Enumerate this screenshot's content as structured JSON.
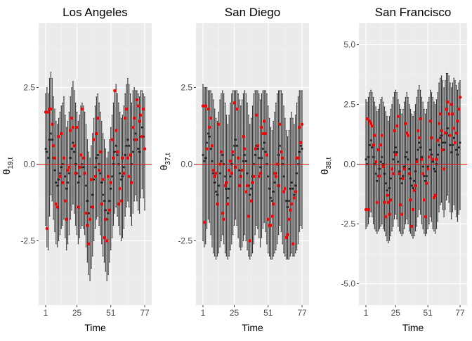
{
  "chart_data": [
    {
      "type": "errorbar",
      "title": "Los Angeles",
      "xlabel": "Time",
      "ylabel_base": "θ",
      "ylabel_sub": "19,t",
      "xlim": [
        1,
        77
      ],
      "ylim": [
        -4.6,
        4.6
      ],
      "x_ticks": [
        1,
        25,
        51,
        77
      ],
      "y_ticks": [
        -2.5,
        0.0,
        2.5
      ],
      "y_tick_labels": [
        "-2.5",
        "0.0",
        "2.5"
      ],
      "reference_line": 0,
      "x": [
        1,
        2,
        3,
        4,
        5,
        6,
        7,
        8,
        9,
        10,
        11,
        12,
        13,
        14,
        15,
        16,
        17,
        18,
        19,
        20,
        21,
        22,
        23,
        24,
        25,
        26,
        27,
        28,
        29,
        30,
        31,
        32,
        33,
        34,
        35,
        36,
        37,
        38,
        39,
        40,
        41,
        42,
        43,
        44,
        45,
        46,
        47,
        48,
        49,
        50,
        51,
        52,
        53,
        54,
        55,
        56,
        57,
        58,
        59,
        60,
        61,
        62,
        63,
        64,
        65,
        66,
        67,
        68,
        69,
        70,
        71,
        72,
        73,
        74,
        75,
        76,
        77
      ],
      "mean": [
        0.5,
        0.4,
        0.2,
        0.8,
        1.0,
        0.8,
        0.2,
        -0.2,
        -0.6,
        -0.7,
        -0.5,
        -0.3,
        -0.1,
        0.0,
        0.2,
        -0.4,
        -0.8,
        -0.6,
        -0.3,
        0.2,
        0.5,
        0.7,
        0.4,
        0.0,
        -0.3,
        -0.6,
        -0.4,
        -0.1,
        0.0,
        -0.1,
        -0.3,
        -0.7,
        -1.2,
        -1.6,
        -1.8,
        -1.4,
        -1.0,
        -0.5,
        -0.1,
        0.2,
        0.3,
        0.0,
        -0.3,
        -0.6,
        -1.0,
        -1.2,
        -1.5,
        -1.8,
        -1.6,
        -1.2,
        -0.8,
        -0.4,
        0.0,
        0.4,
        0.6,
        0.3,
        0.0,
        -0.3,
        -0.5,
        -0.4,
        -0.1,
        0.3,
        0.6,
        0.8,
        0.6,
        0.3,
        0.0,
        0.4,
        0.8,
        1.0,
        0.8,
        0.5,
        0.4,
        0.9,
        1.2,
        0.9,
        0.5
      ],
      "lower": [
        -2.0,
        -2.7,
        -2.8,
        -1.7,
        -1.0,
        -1.2,
        -1.8,
        -2.2,
        -2.6,
        -2.7,
        -2.5,
        -2.3,
        -2.1,
        -2.0,
        -1.8,
        -2.4,
        -2.8,
        -2.6,
        -2.3,
        -1.8,
        -1.5,
        -1.3,
        -1.6,
        -2.0,
        -2.3,
        -2.6,
        -2.4,
        -2.1,
        -2.0,
        -2.1,
        -2.3,
        -2.7,
        -3.2,
        -3.6,
        -3.8,
        -3.4,
        -3.0,
        -2.5,
        -2.1,
        -1.8,
        -1.7,
        -2.0,
        -2.3,
        -2.6,
        -3.0,
        -3.2,
        -3.5,
        -3.8,
        -3.6,
        -3.2,
        -2.8,
        -2.4,
        -2.0,
        -1.6,
        -1.4,
        -1.7,
        -2.0,
        -2.3,
        -2.5,
        -2.4,
        -2.1,
        -1.7,
        -1.4,
        -1.2,
        -1.4,
        -1.7,
        -2.0,
        -1.6,
        -1.2,
        -1.0,
        -1.2,
        -1.5,
        -1.6,
        -1.1,
        -0.8,
        -1.1,
        -1.5
      ],
      "upper": [
        2.3,
        2.5,
        2.3,
        2.8,
        3.0,
        2.8,
        2.2,
        1.8,
        1.4,
        1.3,
        1.5,
        1.7,
        1.9,
        2.0,
        2.2,
        1.6,
        1.2,
        1.4,
        1.7,
        2.2,
        2.5,
        2.7,
        2.4,
        2.0,
        1.7,
        1.4,
        1.6,
        1.9,
        2.0,
        1.9,
        1.7,
        1.3,
        0.8,
        0.4,
        0.2,
        0.6,
        1.0,
        1.5,
        1.9,
        2.2,
        2.3,
        2.0,
        1.7,
        1.4,
        1.0,
        0.8,
        0.5,
        0.2,
        0.4,
        0.8,
        1.2,
        1.6,
        2.0,
        2.4,
        2.6,
        2.3,
        2.0,
        1.7,
        1.5,
        1.6,
        1.9,
        2.3,
        2.6,
        2.8,
        2.6,
        2.3,
        2.0,
        2.4,
        2.5,
        2.4,
        2.4,
        2.3,
        2.2,
        2.4,
        2.4,
        2.3,
        2.2
      ],
      "observed": [
        1.7,
        -2.1,
        1.7,
        1.8,
        1.8,
        1.3,
        0.6,
        0.2,
        -1.3,
        -1.4,
        0.9,
        -0.4,
        1.0,
        -0.6,
        0.2,
        -1.2,
        -1.8,
        -0.2,
        -0.1,
        1.1,
        1.5,
        1.2,
        0.6,
        -0.3,
        1.2,
        -1.4,
        -0.1,
        0.3,
        1.8,
        0.2,
        -0.3,
        -1.6,
        -2.0,
        -2.6,
        -1.8,
        -0.5,
        -1.4,
        0.8,
        -0.4,
        1.0,
        1.5,
        -0.2,
        0.4,
        -1.3,
        -0.5,
        -2.4,
        -1.8,
        -2.5,
        -0.4,
        -1.5,
        -0.6,
        0.8,
        0.2,
        2.4,
        1.1,
        0.4,
        -1.3,
        -0.8,
        -1.2,
        0.2,
        -0.3,
        1.5,
        1.8,
        0.2,
        -0.4,
        0.3,
        -0.6,
        1.2,
        1.5,
        0.8,
        2.1,
        1.9,
        1.4,
        1.6,
        0.9,
        1.8,
        0.5
      ]
    },
    {
      "type": "errorbar",
      "title": "San Diego",
      "xlabel": "Time",
      "ylabel_base": "θ",
      "ylabel_sub": "37,t",
      "xlim": [
        1,
        77
      ],
      "ylim": [
        -4.6,
        4.6
      ],
      "x_ticks": [
        1,
        25,
        51,
        77
      ],
      "y_ticks": [
        -2.5,
        0.0,
        2.5
      ],
      "y_tick_labels": [
        "-2.5",
        "0.0",
        "2.5"
      ],
      "reference_line": 0,
      "x": [
        1,
        2,
        3,
        4,
        5,
        6,
        7,
        8,
        9,
        10,
        11,
        12,
        13,
        14,
        15,
        16,
        17,
        18,
        19,
        20,
        21,
        22,
        23,
        24,
        25,
        26,
        27,
        28,
        29,
        30,
        31,
        32,
        33,
        34,
        35,
        36,
        37,
        38,
        39,
        40,
        41,
        42,
        43,
        44,
        45,
        46,
        47,
        48,
        49,
        50,
        51,
        52,
        53,
        54,
        55,
        56,
        57,
        58,
        59,
        60,
        61,
        62,
        63,
        64,
        65,
        66,
        67,
        68,
        69,
        70,
        71,
        72,
        73,
        74,
        75,
        76,
        77
      ],
      "mean": [
        0.3,
        0.1,
        0.2,
        0.7,
        1.0,
        0.9,
        0.5,
        0.1,
        -0.3,
        -0.6,
        -0.9,
        -1.0,
        -0.7,
        -0.3,
        0.1,
        0.3,
        0.0,
        -0.4,
        -0.8,
        -1.1,
        -0.8,
        -0.4,
        0.0,
        0.3,
        0.6,
        0.8,
        0.6,
        0.2,
        -0.2,
        -0.4,
        -0.2,
        0.1,
        0.3,
        0.1,
        -0.3,
        -0.7,
        -1.0,
        -0.8,
        -0.4,
        0.0,
        0.3,
        0.6,
        0.5,
        0.2,
        -0.1,
        0.2,
        0.5,
        0.7,
        0.4,
        0.0,
        -0.4,
        -0.8,
        -1.1,
        -1.2,
        -0.9,
        -0.6,
        -0.3,
        0.0,
        0.3,
        0.6,
        0.4,
        0.0,
        -0.4,
        -0.8,
        -1.2,
        -1.4,
        -1.2,
        -0.8,
        -0.6,
        -0.8,
        -1.0,
        -0.7,
        -0.3,
        0.0,
        0.4,
        0.6,
        0.5
      ],
      "lower": [
        -2.5,
        -2.7,
        -2.6,
        -2.1,
        -1.8,
        -1.9,
        -2.3,
        -2.7,
        -2.9,
        -3.0,
        -3.1,
        -3.0,
        -2.9,
        -2.7,
        -2.5,
        -2.3,
        -2.6,
        -2.9,
        -3.0,
        -3.1,
        -3.0,
        -2.8,
        -2.6,
        -2.3,
        -2.0,
        -1.8,
        -2.0,
        -2.4,
        -2.7,
        -2.8,
        -2.7,
        -2.5,
        -2.3,
        -2.5,
        -2.8,
        -3.0,
        -3.1,
        -3.0,
        -2.9,
        -2.6,
        -2.3,
        -2.0,
        -2.1,
        -2.4,
        -2.7,
        -2.4,
        -2.1,
        -1.9,
        -2.2,
        -2.6,
        -2.9,
        -3.0,
        -3.1,
        -3.1,
        -3.0,
        -2.9,
        -2.8,
        -2.6,
        -2.3,
        -2.0,
        -2.2,
        -2.6,
        -2.9,
        -3.0,
        -3.1,
        -3.1,
        -3.1,
        -3.0,
        -2.9,
        -3.0,
        -3.0,
        -2.9,
        -2.8,
        -2.6,
        -2.2,
        -2.0,
        -2.1
      ],
      "upper": [
        2.6,
        2.5,
        2.5,
        2.5,
        2.4,
        2.4,
        2.4,
        2.3,
        2.1,
        1.8,
        1.5,
        1.4,
        1.7,
        2.1,
        2.3,
        2.4,
        2.3,
        2.0,
        1.6,
        1.3,
        1.6,
        2.0,
        2.3,
        2.4,
        2.4,
        2.4,
        2.4,
        2.3,
        2.1,
        1.9,
        2.1,
        2.3,
        2.4,
        2.3,
        2.0,
        1.6,
        1.3,
        1.5,
        1.9,
        2.3,
        2.4,
        2.4,
        2.4,
        2.3,
        2.1,
        2.3,
        2.4,
        2.4,
        2.4,
        2.3,
        1.9,
        1.5,
        1.2,
        1.1,
        1.4,
        1.7,
        2.0,
        2.3,
        2.4,
        2.4,
        2.4,
        2.3,
        1.9,
        1.5,
        1.1,
        0.9,
        1.1,
        1.5,
        1.7,
        1.5,
        1.3,
        1.6,
        2.0,
        2.2,
        2.4,
        2.4,
        2.4
      ],
      "observed": [
        1.9,
        -1.9,
        1.9,
        0.5,
        1.8,
        1.2,
        1.5,
        0.6,
        -0.2,
        -0.4,
        -0.3,
        -1.3,
        1.3,
        0.0,
        0.4,
        -1.6,
        -1.8,
        -0.7,
        -0.6,
        -1.3,
        -0.2,
        0.1,
        -0.3,
        0.4,
        2.0,
        -0.1,
        1.8,
        0.2,
        -0.7,
        -0.4,
        -0.2,
        0.9,
        0.5,
        -0.9,
        -0.7,
        -1.7,
        -2.5,
        -1.2,
        -0.6,
        -0.4,
        0.5,
        1.6,
        0.6,
        -0.4,
        -0.3,
        1.2,
        1.0,
        1.4,
        1.0,
        0.3,
        -1.8,
        -2.0,
        -2.0,
        -1.7,
        -1.3,
        -0.3,
        -0.4,
        0.0,
        -0.7,
        1.3,
        0.4,
        0.2,
        -0.9,
        -0.8,
        -2.4,
        -2.3,
        -1.8,
        -1.5,
        -1.3,
        -2.6,
        -1.1,
        -0.9,
        0.2,
        0.2,
        1.2,
        0.7,
        1.3
      ]
    },
    {
      "type": "errorbar",
      "title": "San Francisco",
      "xlabel": "Time",
      "ylabel_base": "θ",
      "ylabel_sub": "38,t",
      "xlim": [
        1,
        77
      ],
      "ylim": [
        -5.9,
        5.9
      ],
      "x_ticks": [
        1,
        25,
        51,
        77
      ],
      "y_ticks": [
        -5.0,
        -2.5,
        0.0,
        2.5,
        5.0
      ],
      "y_tick_labels": [
        "-5.0",
        "-2.5",
        "0.0",
        "2.5",
        "5.0"
      ],
      "reference_line": 0,
      "x": [
        1,
        2,
        3,
        4,
        5,
        6,
        7,
        8,
        9,
        10,
        11,
        12,
        13,
        14,
        15,
        16,
        17,
        18,
        19,
        20,
        21,
        22,
        23,
        24,
        25,
        26,
        27,
        28,
        29,
        30,
        31,
        32,
        33,
        34,
        35,
        36,
        37,
        38,
        39,
        40,
        41,
        42,
        43,
        44,
        45,
        46,
        47,
        48,
        49,
        50,
        51,
        52,
        53,
        54,
        55,
        56,
        57,
        58,
        59,
        60,
        61,
        62,
        63,
        64,
        65,
        66,
        67,
        68,
        69,
        70,
        71,
        72,
        73,
        74,
        75,
        76,
        77
      ],
      "mean": [
        0.2,
        0.0,
        0.3,
        0.8,
        1.0,
        0.7,
        0.3,
        0.0,
        -0.4,
        -0.7,
        -0.5,
        -0.2,
        0.1,
        0.3,
        0.0,
        -0.4,
        -0.8,
        -1.1,
        -1.3,
        -1.0,
        -0.6,
        -0.2,
        0.2,
        0.5,
        0.7,
        0.5,
        0.1,
        -0.3,
        -0.6,
        -0.8,
        -0.5,
        -0.1,
        0.3,
        0.5,
        0.2,
        -0.2,
        -0.6,
        -0.9,
        -1.0,
        -0.7,
        -0.3,
        0.2,
        0.6,
        0.9,
        0.7,
        0.3,
        -0.1,
        -0.5,
        -0.7,
        -0.5,
        -0.1,
        0.3,
        0.6,
        0.4,
        0.1,
        -0.2,
        -0.3,
        0.0,
        0.4,
        0.8,
        1.1,
        1.2,
        0.9,
        0.6,
        0.9,
        1.3,
        1.5,
        1.2,
        0.8,
        0.5,
        0.8,
        1.1,
        0.9,
        0.6,
        0.4,
        0.7,
        0.9
      ],
      "lower": [
        -2.7,
        -2.6,
        -2.5,
        -2.2,
        -2.0,
        -2.2,
        -2.5,
        -2.7,
        -2.8,
        -2.9,
        -2.8,
        -2.7,
        -2.6,
        -2.5,
        -2.7,
        -2.8,
        -3.0,
        -3.2,
        -3.3,
        -3.2,
        -3.0,
        -2.8,
        -2.6,
        -2.3,
        -2.1,
        -2.3,
        -2.6,
        -2.8,
        -2.9,
        -3.0,
        -2.9,
        -2.7,
        -2.5,
        -2.3,
        -2.5,
        -2.8,
        -2.9,
        -3.0,
        -3.1,
        -3.0,
        -2.8,
        -2.6,
        -2.2,
        -1.9,
        -2.1,
        -2.5,
        -2.7,
        -2.9,
        -3.0,
        -2.9,
        -2.7,
        -2.5,
        -2.2,
        -2.4,
        -2.7,
        -2.8,
        -2.9,
        -2.7,
        -2.4,
        -2.0,
        -1.7,
        -1.6,
        -1.9,
        -2.2,
        -1.9,
        -1.5,
        -1.3,
        -1.6,
        -2.0,
        -2.3,
        -2.0,
        -1.7,
        -1.9,
        -2.2,
        -2.4,
        -2.1,
        -1.9
      ],
      "upper": [
        2.7,
        2.6,
        2.8,
        3.0,
        3.1,
        3.0,
        2.8,
        2.6,
        2.4,
        2.2,
        2.3,
        2.5,
        2.7,
        2.8,
        2.6,
        2.4,
        2.2,
        2.0,
        1.8,
        2.0,
        2.3,
        2.5,
        2.8,
        3.0,
        3.1,
        3.0,
        2.7,
        2.5,
        2.3,
        2.1,
        2.3,
        2.6,
        2.8,
        3.0,
        2.8,
        2.5,
        2.3,
        2.1,
        2.0,
        2.2,
        2.5,
        2.8,
        3.1,
        3.3,
        3.1,
        2.8,
        2.6,
        2.3,
        2.1,
        2.3,
        2.6,
        2.8,
        3.1,
        3.0,
        2.8,
        2.6,
        2.5,
        2.7,
        3.0,
        3.4,
        3.6,
        3.7,
        3.5,
        3.2,
        3.5,
        3.8,
        3.8,
        3.7,
        3.4,
        3.2,
        3.4,
        3.6,
        3.5,
        3.3,
        3.1,
        3.4,
        3.5
      ],
      "observed": [
        -1.9,
        1.9,
        -1.9,
        1.8,
        1.7,
        1.6,
        0.8,
        1.2,
        0.1,
        -1.6,
        0.6,
        -0.5,
        0.8,
        1.2,
        -0.1,
        -1.6,
        -2.2,
        -1.3,
        -1.6,
        -2.1,
        -1.5,
        -0.2,
        -0.4,
        1.4,
        0.4,
        1.6,
        2.0,
        -0.4,
        -1.7,
        -2.1,
        -0.6,
        -0.2,
        1.7,
        1.3,
        1.2,
        -0.4,
        -1.5,
        -2.6,
        -1.9,
        -1.1,
        -0.9,
        0.1,
        1.4,
        1.1,
        1.9,
        0.2,
        -0.4,
        -1.5,
        -2.2,
        -0.8,
        -0.2,
        0.3,
        1.8,
        1.1,
        0.2,
        -1.4,
        -1.3,
        0.2,
        1.0,
        1.7,
        2.1,
        1.4,
        0.6,
        -0.2,
        1.3,
        2.3,
        2.6,
        2.1,
        1.2,
        2.5,
        2.1,
        1.5,
        0.9,
        1.3,
        1.8,
        2.3,
        2.8
      ]
    }
  ]
}
